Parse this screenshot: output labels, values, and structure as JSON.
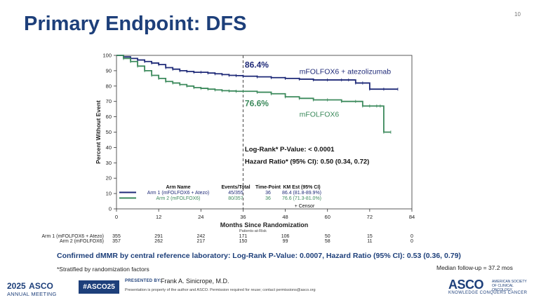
{
  "slide": {
    "title": "Primary Endpoint: DFS",
    "slide_number": "10",
    "confirmed_note": "Confirmed dMMR by central reference laboratory: Log-Rank P-Value: 0.0007, Hazard Ratio (95% CI): 0.53 (0.36, 0.79)",
    "stratified_note": "*Stratified by randomization factors",
    "median_followup": "Median follow-up = 37.2 mos"
  },
  "footer": {
    "meeting_year": "2025",
    "meeting_org": "ASCO",
    "meeting_sub": "ANNUAL MEETING",
    "hashtag": "#ASCO25",
    "presented_by_label": "PRESENTED BY:",
    "presenter": "Frank A. Sinicrope, M.D.",
    "property_note": "Presentation is property of the author and ASCO. Permission required for reuse; contact permissions@asco.org",
    "asco_logo_word": "ASCO",
    "asco_society": "AMERICAN SOCIETY OF CLINICAL ONCOLOGY",
    "asco_tagline": "KNOWLEDGE CONQUERS CANCER"
  },
  "chart_data": {
    "type": "line",
    "title": "",
    "xlabel": "Months Since Randomization",
    "ylabel": "Percent Without Event",
    "xlim": [
      0,
      84
    ],
    "ylim": [
      0,
      100
    ],
    "x_ticks": [
      0,
      12,
      24,
      36,
      48,
      60,
      72,
      84
    ],
    "y_ticks": [
      0,
      10,
      20,
      30,
      40,
      50,
      60,
      70,
      80,
      90,
      100
    ],
    "reference_x": 36,
    "colors": {
      "arm1": "#1f2a78",
      "arm2": "#3c8a5c"
    },
    "series": [
      {
        "name": "mFOLFOX6 + atezolizumab",
        "color_key": "arm1",
        "x": [
          0,
          2,
          4,
          6,
          8,
          10,
          12,
          14,
          16,
          18,
          20,
          22,
          24,
          26,
          28,
          30,
          32,
          34,
          36,
          40,
          44,
          48,
          52,
          56,
          60,
          64,
          66,
          68,
          70,
          72,
          76,
          80
        ],
        "y": [
          100,
          99,
          98,
          97,
          96,
          95,
          94,
          92,
          91,
          90,
          89.5,
          89,
          89,
          88.5,
          88,
          87.5,
          87,
          86.8,
          86.4,
          86,
          85.5,
          85,
          84.5,
          84,
          84,
          84,
          84,
          82,
          82,
          78,
          78,
          78
        ]
      },
      {
        "name": "mFOLFOX6",
        "color_key": "arm2",
        "x": [
          0,
          2,
          4,
          6,
          8,
          10,
          12,
          14,
          16,
          18,
          20,
          22,
          24,
          26,
          28,
          30,
          32,
          34,
          36,
          40,
          44,
          48,
          52,
          56,
          60,
          64,
          68,
          70,
          72,
          74,
          75,
          76,
          78
        ],
        "y": [
          100,
          98,
          96,
          93,
          90,
          87,
          85,
          83,
          82,
          81,
          80,
          79,
          78.5,
          78,
          77.5,
          77,
          76.8,
          76.6,
          76.6,
          76,
          75,
          73,
          72,
          71,
          71,
          70,
          70,
          67,
          67,
          67,
          67,
          50,
          50
        ]
      }
    ],
    "annotations": [
      {
        "text": "86.4%",
        "x": 36.5,
        "y": 92,
        "color_key": "arm1",
        "bold": true
      },
      {
        "text": "76.6%",
        "x": 36.5,
        "y": 67,
        "color_key": "arm2",
        "bold": true
      },
      {
        "text": "mFOLFOX6 + atezolizumab",
        "x": 52,
        "y": 88,
        "color_key": "arm1",
        "bold": false
      },
      {
        "text": "mFOLFOX6",
        "x": 52,
        "y": 60,
        "color_key": "arm2",
        "bold": false
      },
      {
        "text": "Log-Rank* P-Value: < 0.0001",
        "x": 36.5,
        "y": 37.5,
        "color_key": "text",
        "bold": true
      },
      {
        "text": "Hazard Ratio* (95% CI): 0.50 (0.34, 0.72)",
        "x": 36.5,
        "y": 29.5,
        "color_key": "text",
        "bold": true
      }
    ],
    "legend": {
      "placement": "bottom-left",
      "headers": [
        "Arm Name",
        "Events/Total",
        "Time-Point",
        "KM Est (95% CI)"
      ],
      "rows": [
        {
          "arm": "Arm 1 (mFOLFOX6 + Atezo)",
          "events": "45/355",
          "time_point": "36",
          "km": "86.4 (81.8-89.9%)",
          "color_key": "arm1"
        },
        {
          "arm": "Arm 2 (mFOLFOX6)",
          "events": "80/357",
          "time_point": "36",
          "km": "76.6 (71.3-81.0%)",
          "color_key": "arm2"
        }
      ],
      "censor_label": "+ Censor"
    },
    "at_risk": {
      "title": "Patients-at-Risk",
      "rows": [
        {
          "label": "Arm 1 (mFOLFOX6 + Atezo)",
          "values": [
            "355",
            "291",
            "242",
            "171",
            "106",
            "50",
            "15",
            "0"
          ]
        },
        {
          "label": "Arm 2 (mFOLFOX6)",
          "values": [
            "357",
            "262",
            "217",
            "150",
            "99",
            "58",
            "11",
            "0"
          ]
        }
      ]
    }
  }
}
